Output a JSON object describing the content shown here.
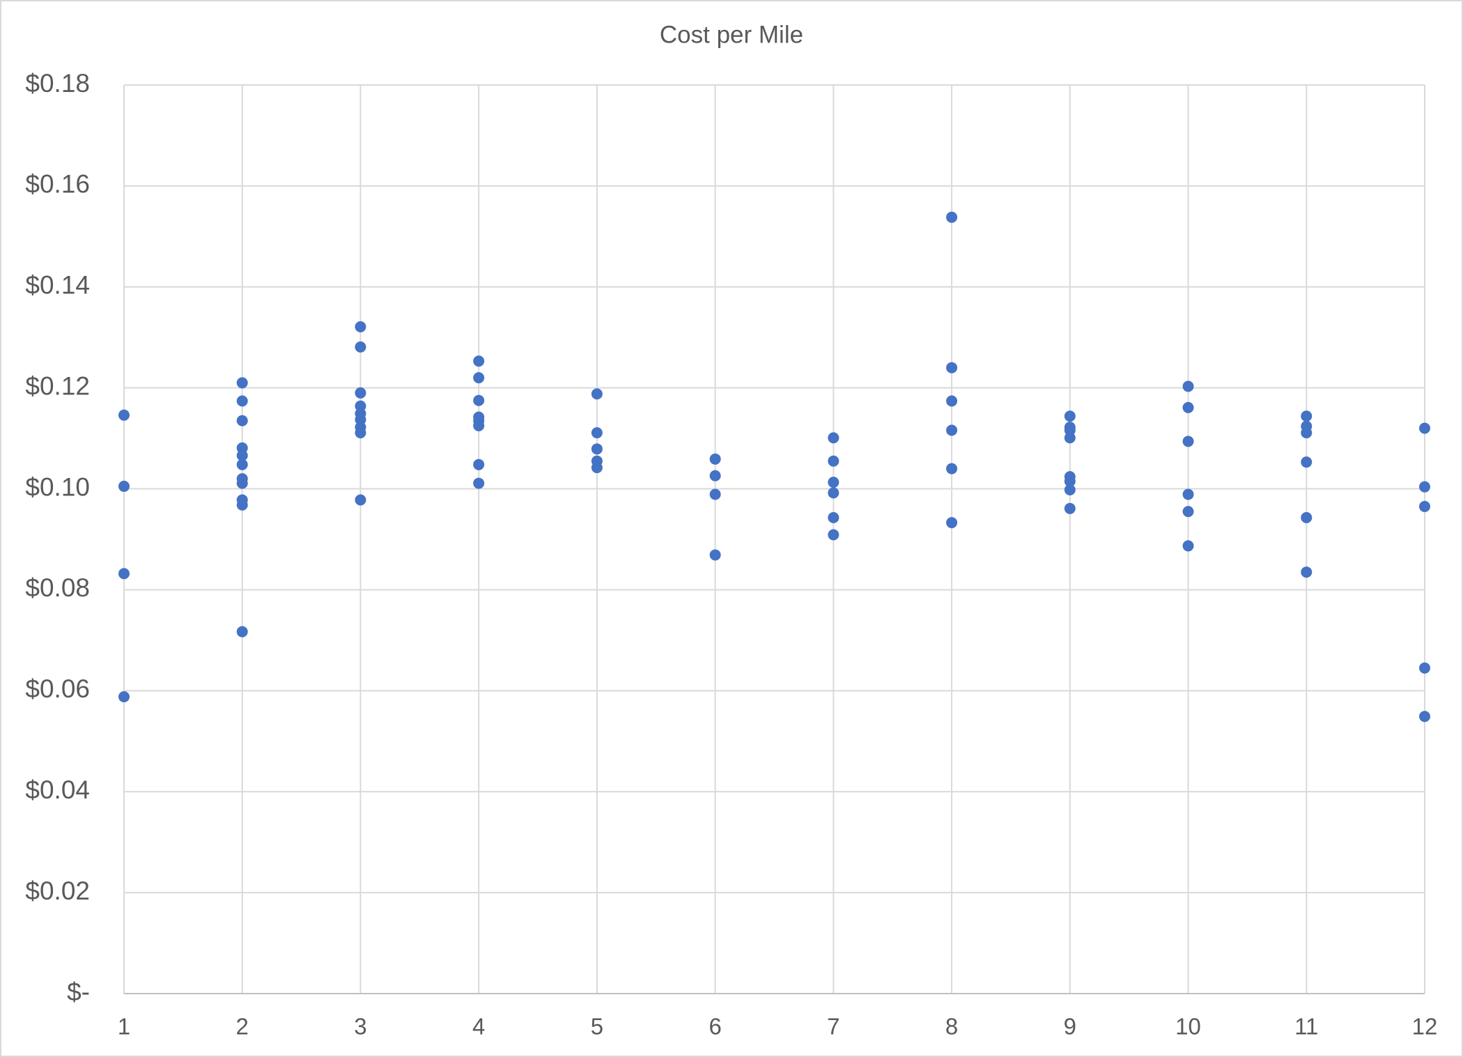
{
  "chart_data": {
    "type": "scatter",
    "title": "Cost per Mile",
    "color": "#4472c4",
    "grid": true,
    "x": [
      1,
      1,
      1,
      1,
      2,
      2,
      2,
      2,
      2,
      2,
      2,
      2,
      2,
      2,
      2,
      3,
      3,
      3,
      3,
      3,
      3,
      3,
      3,
      3,
      4,
      4,
      4,
      4,
      4,
      4,
      4,
      4,
      5,
      5,
      5,
      5,
      5,
      6,
      6,
      6,
      6,
      7,
      7,
      7,
      7,
      7,
      7,
      8,
      8,
      8,
      8,
      8,
      8,
      9,
      9,
      9,
      9,
      9,
      9,
      9,
      9,
      10,
      10,
      10,
      10,
      10,
      10,
      11,
      11,
      11,
      11,
      11,
      11,
      12,
      12,
      12,
      12,
      12
    ],
    "values": [
      0.1146,
      0.1005,
      0.0832,
      0.0588,
      0.121,
      0.1174,
      0.1135,
      0.1081,
      0.1066,
      0.1048,
      0.102,
      0.1011,
      0.0978,
      0.0968,
      0.0717,
      0.1321,
      0.1281,
      0.119,
      0.1164,
      0.1149,
      0.1137,
      0.1122,
      0.1111,
      0.0978,
      0.1253,
      0.122,
      0.1175,
      0.1142,
      0.1135,
      0.1125,
      0.1048,
      0.1011,
      0.1188,
      0.1111,
      0.1079,
      0.1055,
      0.1042,
      0.1059,
      0.1026,
      0.0989,
      0.0869,
      0.1101,
      0.1055,
      0.1013,
      0.0992,
      0.0943,
      0.0909,
      0.1538,
      0.124,
      0.1174,
      0.1116,
      0.104,
      0.0933,
      0.1144,
      0.1122,
      0.1116,
      0.1101,
      0.1024,
      0.1015,
      0.0998,
      0.0961,
      0.1203,
      0.1161,
      0.1094,
      0.0989,
      0.0955,
      0.0887,
      0.1144,
      0.1124,
      0.1111,
      0.1053,
      0.0943,
      0.0835,
      0.112,
      0.1004,
      0.0965,
      0.0645,
      0.0549
    ],
    "xlim": [
      1,
      12
    ],
    "xticks": [
      1,
      2,
      3,
      4,
      5,
      6,
      7,
      8,
      9,
      10,
      11,
      12
    ],
    "ylim": [
      0,
      0.18
    ],
    "yticks": [
      {
        "value": 0,
        "label": "$-"
      },
      {
        "value": 0.02,
        "label": "$0.02"
      },
      {
        "value": 0.04,
        "label": "$0.04"
      },
      {
        "value": 0.06,
        "label": "$0.06"
      },
      {
        "value": 0.08,
        "label": "$0.08"
      },
      {
        "value": 0.1,
        "label": "$0.10"
      },
      {
        "value": 0.12,
        "label": "$0.12"
      },
      {
        "value": 0.14,
        "label": "$0.14"
      },
      {
        "value": 0.16,
        "label": "$0.16"
      },
      {
        "value": 0.18,
        "label": "$0.18"
      }
    ]
  }
}
